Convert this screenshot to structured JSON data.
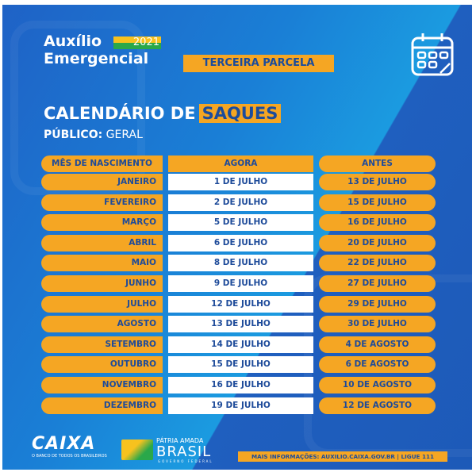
{
  "header": {
    "title_line1": "Auxílio",
    "year": "2021",
    "title_line2": "Emergencial",
    "badge": "TERCEIRA PARCELA",
    "calendar_icon": "calendar-icon"
  },
  "calendar": {
    "title": "CALENDÁRIO DE",
    "highlight": "SAQUES",
    "public_label": "PÚBLICO:",
    "public_value": "GERAL"
  },
  "table": {
    "headers": [
      "MÊS DE NASCIMENTO",
      "AGORA",
      "ANTES"
    ],
    "rows": [
      [
        "JANEIRO",
        "1 DE JULHO",
        "13 DE JULHO"
      ],
      [
        "FEVEREIRO",
        "2 DE JULHO",
        "15 DE JULHO"
      ],
      [
        "MARÇO",
        "5 DE JULHO",
        "16 DE JULHO"
      ],
      [
        "ABRIL",
        "6 DE JULHO",
        "20 DE JULHO"
      ],
      [
        "MAIO",
        "8 DE JULHO",
        "22 DE JULHO"
      ],
      [
        "JUNHO",
        "9 DE JULHO",
        "27 DE JULHO"
      ],
      [
        "JULHO",
        "12 DE JULHO",
        "29 DE JULHO"
      ],
      [
        "AGOSTO",
        "13 DE JULHO",
        "30 DE JULHO"
      ],
      [
        "SETEMBRO",
        "14 DE JULHO",
        "4 DE AGOSTO"
      ],
      [
        "OUTUBRO",
        "15 DE JULHO",
        "6 DE AGOSTO"
      ],
      [
        "NOVEMBRO",
        "16 DE JULHO",
        "10 DE AGOSTO"
      ],
      [
        "DEZEMBRO",
        "19 DE JULHO",
        "12 DE AGOSTO"
      ]
    ]
  },
  "footer": {
    "caixa": "CAIXA",
    "caixa_tagline": "O BANCO DE TODOS OS BRASILEIROS",
    "patria": "PÁTRIA AMADA",
    "brasil": "BRASIL",
    "governo": "GOVERNO FEDERAL",
    "info": "MAIS INFORMAÇÕES: AUXILIO.CAIXA.GOV.BR | LIGUE 111"
  },
  "colors": {
    "orange": "#f5a623",
    "blue": "#1f62c6",
    "text_blue": "#1e4b9a"
  }
}
